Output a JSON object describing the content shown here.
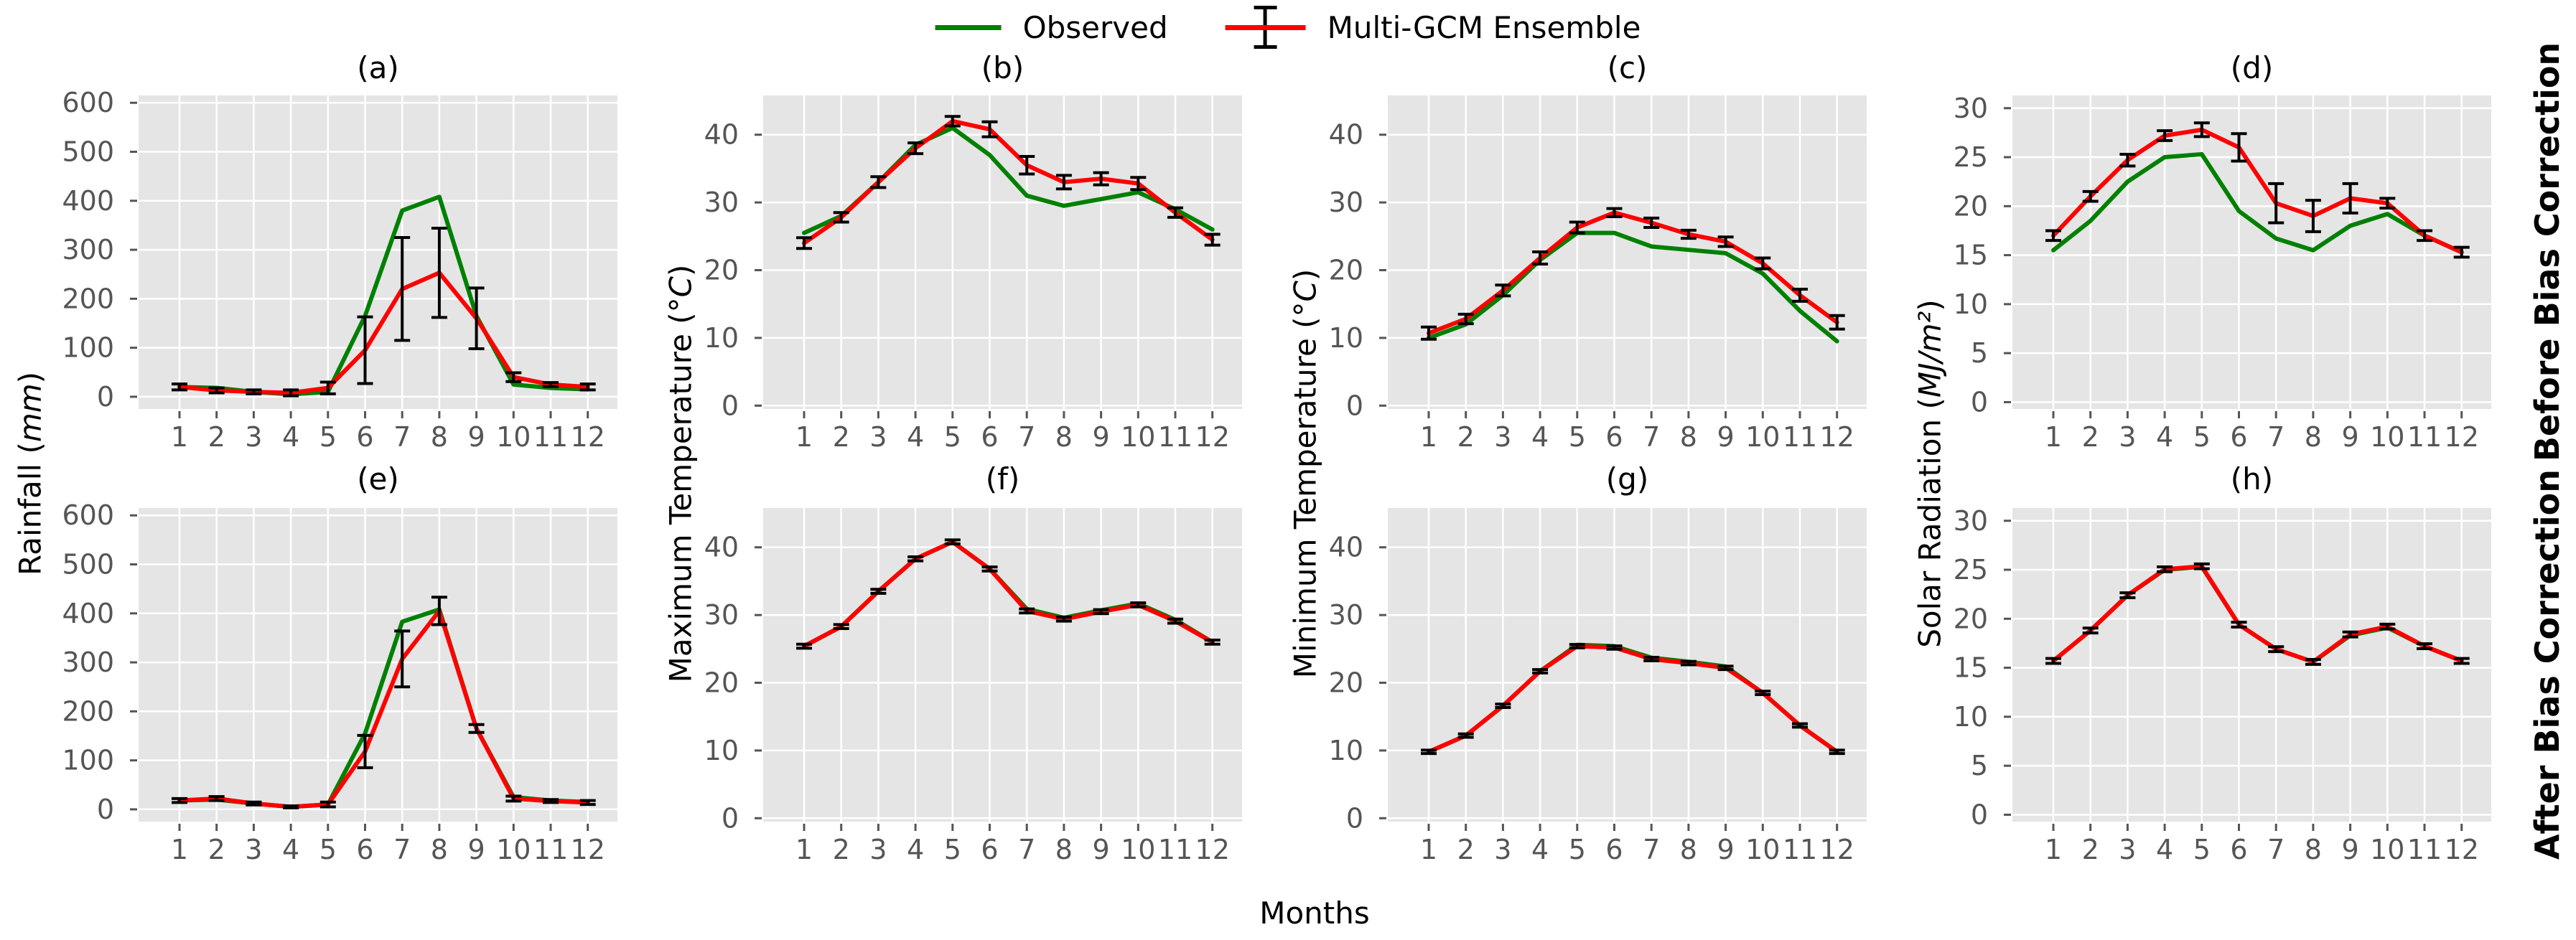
{
  "colors": {
    "observed": "#008000",
    "ensemble": "#ff0000",
    "errorbar": "#000000",
    "plot_bg": "#e5e5e5",
    "grid": "#ffffff",
    "tick": "#555555"
  },
  "legend": {
    "observed_label": "Observed",
    "ensemble_label": "Multi-GCM Ensemble"
  },
  "row_labels": [
    "Before Bias Correction",
    "After Bias Correction"
  ],
  "axis_labels": [
    {
      "prefix": "Rainfall (",
      "unit": "mm",
      "suffix": ")",
      "italic_unit": true
    },
    {
      "prefix": "Maximum Temperature (",
      "unit": "°C",
      "suffix": ")",
      "italic_unit": true
    },
    {
      "prefix": "Minimum Temperature (",
      "unit": "°C",
      "suffix": ")",
      "italic_unit": true
    },
    {
      "prefix": "Solar Radiation (",
      "unit": "MJ/m²",
      "suffix": ")",
      "italic_unit": true
    }
  ],
  "chart_data": {
    "type": "line",
    "xlabel": "Months",
    "x_categories": [
      1,
      2,
      3,
      4,
      5,
      6,
      7,
      8,
      9,
      10,
      11,
      12
    ],
    "legend_entries": [
      "Observed",
      "Multi-GCM Ensemble"
    ],
    "legend_position": "top-center",
    "grid": true,
    "panels": [
      {
        "title": "(a)",
        "row": 0,
        "col": 0,
        "ylabel": "Rainfall (mm)",
        "row_label": "Before Bias Correction",
        "ylim": [
          -25,
          615
        ],
        "yticks": [
          0,
          100,
          200,
          300,
          400,
          500,
          600
        ],
        "observed": [
          20,
          18,
          10,
          5,
          10,
          165,
          380,
          408,
          165,
          25,
          18,
          15
        ],
        "ensemble": [
          20,
          13,
          10,
          8,
          18,
          95,
          220,
          253,
          160,
          40,
          25,
          20
        ],
        "errors": [
          6,
          5,
          4,
          6,
          12,
          68,
          105,
          91,
          62,
          9,
          4,
          6
        ]
      },
      {
        "title": "(b)",
        "row": 0,
        "col": 1,
        "ylabel": "Maximum Temperature (°C)",
        "row_label": "Before Bias Correction",
        "ylim": [
          -0.5,
          45.8
        ],
        "yticks": [
          0,
          10,
          20,
          30,
          40
        ],
        "observed": [
          25.5,
          28,
          33,
          38.5,
          41,
          37,
          31,
          29.5,
          30.5,
          31.5,
          29,
          26
        ],
        "ensemble": [
          24,
          27.8,
          33,
          38,
          42,
          40.8,
          35.5,
          33,
          33.5,
          32.8,
          28.5,
          24.5
        ],
        "errors": [
          0.8,
          0.7,
          0.8,
          0.8,
          0.7,
          1.1,
          1.3,
          1.0,
          0.9,
          0.9,
          0.7,
          0.8
        ]
      },
      {
        "title": "(c)",
        "row": 0,
        "col": 2,
        "ylabel": "Minimum Temperature (°C)",
        "row_label": "Before Bias Correction",
        "ylim": [
          -0.5,
          45.8
        ],
        "yticks": [
          0,
          10,
          20,
          30,
          40
        ],
        "observed": [
          10,
          12,
          16.3,
          21.5,
          25.5,
          25.5,
          23.5,
          23,
          22.5,
          19.5,
          14,
          9.5
        ],
        "ensemble": [
          10.7,
          12.8,
          17,
          21.8,
          26.3,
          28.5,
          27,
          25.3,
          24.2,
          21,
          16.3,
          12.3
        ],
        "errors": [
          0.9,
          0.7,
          0.8,
          0.9,
          0.8,
          0.6,
          0.7,
          0.6,
          0.7,
          0.8,
          0.9,
          1.0
        ]
      },
      {
        "title": "(d)",
        "row": 0,
        "col": 3,
        "ylabel": "Solar Radiation (MJ/m²)",
        "row_label": "Before Bias Correction",
        "ylim": [
          -0.7,
          31.3
        ],
        "yticks": [
          0,
          5,
          10,
          15,
          20,
          25,
          30
        ],
        "observed": [
          15.5,
          18.5,
          22.5,
          25,
          25.3,
          19.5,
          16.7,
          15.5,
          18,
          19.2,
          17,
          15.3
        ],
        "ensemble": [
          17,
          21,
          24.7,
          27.2,
          27.8,
          26,
          20.3,
          19,
          20.8,
          20.3,
          17,
          15.3
        ],
        "errors": [
          0.5,
          0.5,
          0.6,
          0.5,
          0.7,
          1.4,
          2.0,
          1.6,
          1.5,
          0.5,
          0.5,
          0.5
        ]
      },
      {
        "title": "(e)",
        "row": 1,
        "col": 0,
        "ylabel": "Rainfall (mm)",
        "row_label": "After Bias Correction",
        "ylim": [
          -25,
          615
        ],
        "yticks": [
          0,
          100,
          200,
          300,
          400,
          500,
          600
        ],
        "observed": [
          18,
          20,
          12,
          5,
          10,
          155,
          383,
          408,
          165,
          25,
          18,
          15
        ],
        "ensemble": [
          18,
          22,
          12,
          5,
          10,
          118,
          307,
          405,
          165,
          22,
          17,
          14
        ],
        "errors": [
          4,
          4,
          3,
          2,
          5,
          33,
          57,
          28,
          8,
          5,
          3,
          4
        ]
      },
      {
        "title": "(f)",
        "row": 1,
        "col": 1,
        "ylabel": "Maximum Temperature (°C)",
        "row_label": "After Bias Correction",
        "ylim": [
          -0.5,
          45.8
        ],
        "yticks": [
          0,
          10,
          20,
          30,
          40
        ],
        "observed": [
          25.4,
          28.3,
          33.5,
          38.3,
          40.8,
          36.8,
          30.9,
          29.6,
          30.7,
          31.7,
          29.3,
          26
        ],
        "ensemble": [
          25.4,
          28.3,
          33.5,
          38.3,
          40.8,
          36.8,
          30.6,
          29.4,
          30.5,
          31.5,
          29.1,
          26
        ],
        "errors": [
          0.3,
          0.3,
          0.3,
          0.3,
          0.3,
          0.3,
          0.3,
          0.3,
          0.3,
          0.3,
          0.3,
          0.3
        ]
      },
      {
        "title": "(g)",
        "row": 1,
        "col": 2,
        "ylabel": "Minimum Temperature (°C)",
        "row_label": "After Bias Correction",
        "ylim": [
          -0.5,
          45.8
        ],
        "yticks": [
          0,
          10,
          20,
          30,
          40
        ],
        "observed": [
          9.8,
          12.2,
          16.6,
          21.7,
          25.6,
          25.4,
          23.7,
          23.1,
          22.4,
          18.5,
          13.7,
          9.8
        ],
        "ensemble": [
          9.8,
          12.2,
          16.6,
          21.7,
          25.4,
          25.2,
          23.5,
          22.9,
          22.2,
          18.5,
          13.7,
          9.8
        ],
        "errors": [
          0.25,
          0.25,
          0.25,
          0.25,
          0.25,
          0.25,
          0.25,
          0.25,
          0.25,
          0.25,
          0.25,
          0.25
        ]
      },
      {
        "title": "(h)",
        "row": 1,
        "col": 3,
        "ylabel": "Solar Radiation (MJ/m²)",
        "row_label": "After Bias Correction",
        "ylim": [
          -0.7,
          31.3
        ],
        "yticks": [
          0,
          5,
          10,
          15,
          20,
          25,
          30
        ],
        "observed": [
          15.7,
          18.8,
          22.4,
          25,
          25.3,
          19.4,
          16.9,
          15.6,
          18.3,
          19.1,
          17.2,
          15.7
        ],
        "ensemble": [
          15.7,
          18.8,
          22.4,
          25.05,
          25.35,
          19.4,
          16.9,
          15.6,
          18.4,
          19.2,
          17.2,
          15.7
        ],
        "errors": [
          0.25,
          0.25,
          0.25,
          0.25,
          0.25,
          0.25,
          0.25,
          0.25,
          0.25,
          0.25,
          0.25,
          0.25
        ]
      }
    ]
  }
}
